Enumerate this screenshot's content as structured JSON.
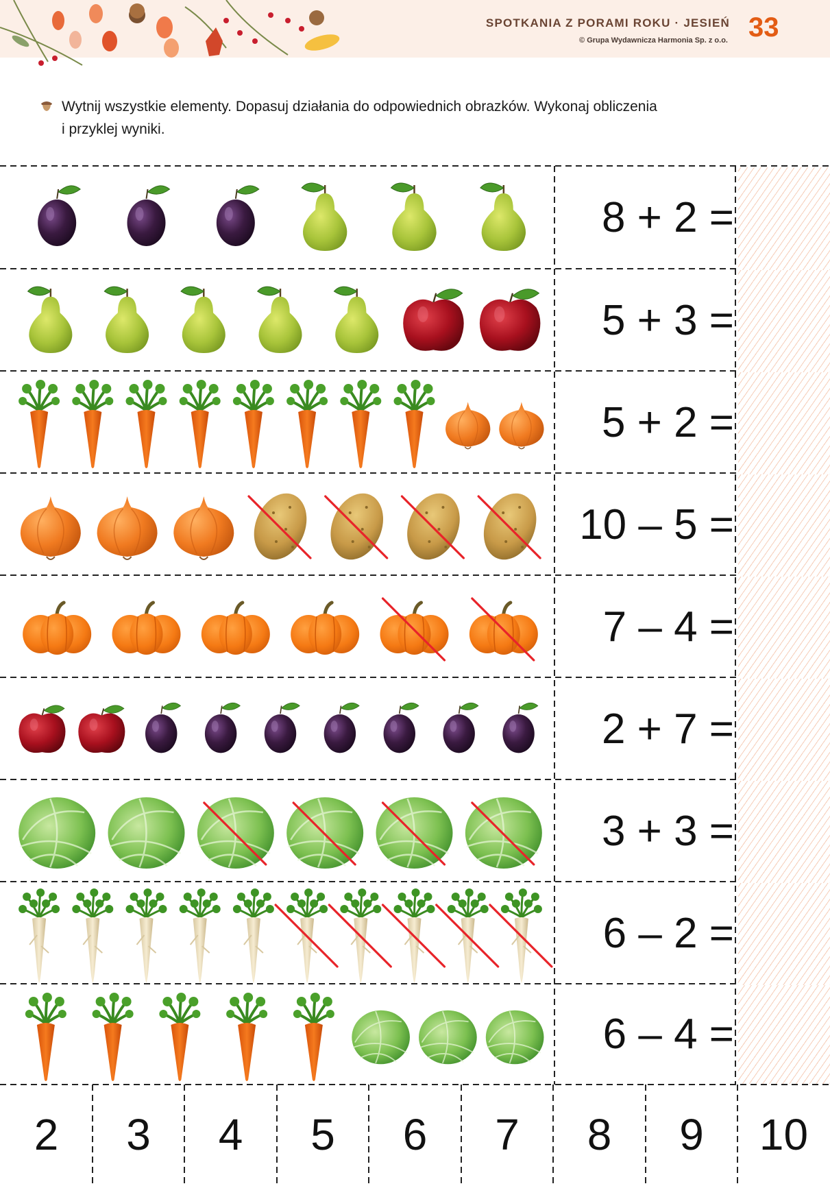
{
  "header": {
    "series_title": "SPOTKANIA Z PORAMI ROKU · JESIEŃ",
    "copyright": "© Grupa Wydawnicza Harmonia Sp. z o.o.",
    "page_number": "33"
  },
  "instruction": {
    "line1": "Wytnij wszystkie elementy. Dopasuj działania do odpowiednich obrazków. Wykonaj obliczenia",
    "line2": "i przyklej wyniki."
  },
  "colors": {
    "accent": "#e35c14",
    "header_bg": "#fcefe7",
    "cross_out": "#e8242a",
    "hatch": "#f6cdb8"
  },
  "rows": [
    {
      "equation": "8 + 2 =",
      "items": [
        {
          "type": "plum",
          "count": 3,
          "crossed": 0
        },
        {
          "type": "pear",
          "count": 3,
          "crossed": 0
        }
      ]
    },
    {
      "equation": "5 + 3 =",
      "items": [
        {
          "type": "pear",
          "count": 5,
          "crossed": 0
        },
        {
          "type": "apple",
          "count": 2,
          "crossed": 0
        }
      ]
    },
    {
      "equation": "5 + 2 =",
      "items": [
        {
          "type": "carrot",
          "count": 8,
          "crossed": 0
        },
        {
          "type": "onion",
          "count": 2,
          "crossed": 0
        }
      ]
    },
    {
      "equation": "10 – 5 =",
      "items": [
        {
          "type": "onion",
          "count": 3,
          "crossed": 0
        },
        {
          "type": "potato",
          "count": 4,
          "crossed": 4
        }
      ]
    },
    {
      "equation": "7 – 4 =",
      "items": [
        {
          "type": "pumpkin",
          "count": 6,
          "crossed": 2
        }
      ]
    },
    {
      "equation": "2 + 7 =",
      "items": [
        {
          "type": "apple",
          "count": 2,
          "crossed": 0
        },
        {
          "type": "plum",
          "count": 7,
          "crossed": 0
        }
      ]
    },
    {
      "equation": "3 + 3 =",
      "items": [
        {
          "type": "cabbage",
          "count": 6,
          "crossed": 4
        }
      ]
    },
    {
      "equation": "6 – 2 =",
      "items": [
        {
          "type": "parsley-root",
          "count": 10,
          "crossed": 5
        }
      ]
    },
    {
      "equation": "6 – 4 =",
      "items": [
        {
          "type": "carrot",
          "count": 5,
          "crossed": 0
        },
        {
          "type": "cabbage",
          "count": 3,
          "crossed": 0
        }
      ]
    }
  ],
  "answers": [
    "2",
    "3",
    "4",
    "5",
    "6",
    "7",
    "8",
    "9",
    "10"
  ]
}
